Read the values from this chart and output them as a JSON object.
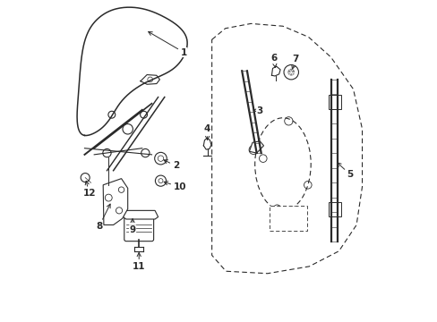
{
  "background_color": "#ffffff",
  "line_color": "#2a2a2a",
  "figure_width": 4.89,
  "figure_height": 3.6,
  "dpi": 100
}
